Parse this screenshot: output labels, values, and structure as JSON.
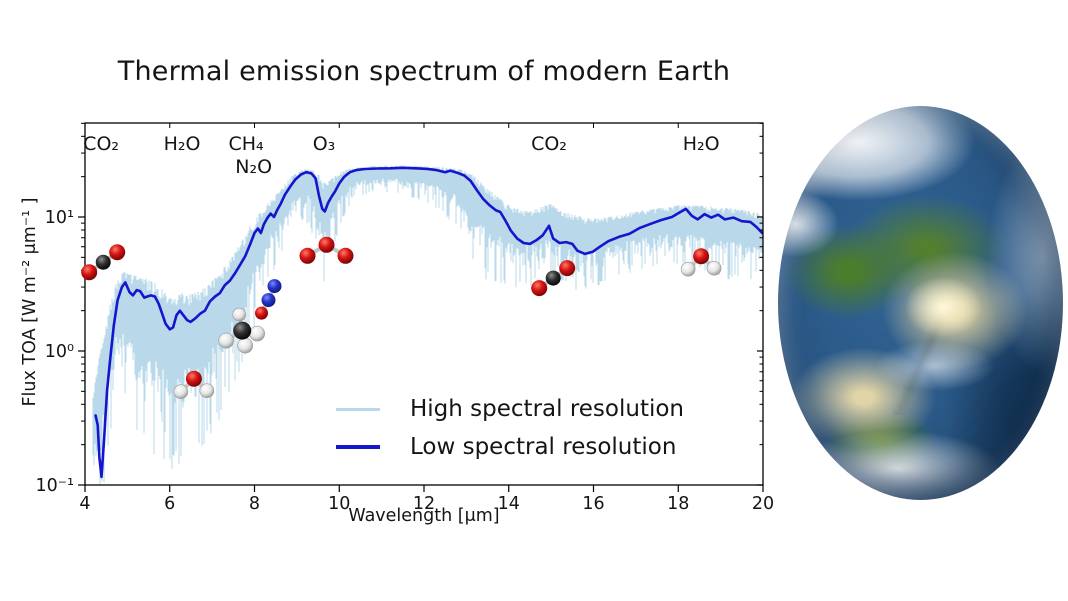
{
  "colors": {
    "background": "#ffffff",
    "high_res_line": "#b9d9ea",
    "low_res_line": "#1515cd",
    "text": "#151515"
  },
  "chart_data": {
    "type": "line",
    "title": "Thermal emission spectrum of modern Earth",
    "xlabel": "Wavelength [μm]",
    "ylabel": "Flux TOA [W m⁻² μm⁻¹ ]",
    "x_range": [
      4,
      20
    ],
    "y_scale": "log",
    "y_range": [
      0.1,
      50
    ],
    "x_ticks": [
      4,
      6,
      8,
      10,
      12,
      14,
      16,
      18,
      20
    ],
    "x_tick_labels": [
      "4",
      "6",
      "8",
      "10",
      "12",
      "14",
      "16",
      "18",
      "20"
    ],
    "y_tick_values": [
      10,
      1,
      0.1
    ],
    "y_tick_labels": [
      "10¹",
      "10⁰",
      "10⁻¹"
    ],
    "grid": false,
    "legend_position": "lower center inside",
    "legend": [
      {
        "label": "High spectral resolution",
        "color": "#b9d9ea"
      },
      {
        "label": "Low spectral resolution",
        "color": "#1515cd"
      }
    ],
    "annotations": [
      {
        "label": "CO₂",
        "label_x": 4.38,
        "row": 1,
        "molecule": "co2",
        "icon_x": 4.43,
        "icon_y": 4.6
      },
      {
        "label": "H₂O",
        "label_x": 6.29,
        "row": 1,
        "molecule": "h2o",
        "icon_x": 6.57,
        "icon_y": 0.56
      },
      {
        "label": "CH₄",
        "label_x": 7.8,
        "row": 1,
        "molecule": "ch4",
        "icon_x": 7.71,
        "icon_y": 1.42
      },
      {
        "label": "N₂O",
        "label_x": 7.98,
        "row": 2,
        "molecule": "n2o",
        "icon_x": 8.33,
        "icon_y": 2.4
      },
      {
        "label": "O₃",
        "label_x": 9.64,
        "row": 1,
        "molecule": "o3",
        "icon_x": 9.7,
        "icon_y": 5.5
      },
      {
        "label": "CO₂",
        "label_x": 14.95,
        "row": 1,
        "molecule": "co2",
        "icon_x": 15.05,
        "icon_y": 3.5
      },
      {
        "label": "H₂O",
        "label_x": 18.54,
        "row": 1,
        "molecule": "h2o",
        "icon_x": 18.54,
        "icon_y": 4.6
      }
    ],
    "series": [
      {
        "name": "Low spectral resolution",
        "color": "#1515cd",
        "points": [
          [
            4.25,
            0.33
          ],
          [
            4.3,
            0.28
          ],
          [
            4.34,
            0.16
          ],
          [
            4.39,
            0.115
          ],
          [
            4.45,
            0.22
          ],
          [
            4.52,
            0.5
          ],
          [
            4.6,
            0.9
          ],
          [
            4.68,
            1.55
          ],
          [
            4.77,
            2.4
          ],
          [
            4.87,
            3.0
          ],
          [
            4.95,
            3.25
          ],
          [
            5.05,
            2.75
          ],
          [
            5.13,
            2.6
          ],
          [
            5.22,
            2.85
          ],
          [
            5.3,
            2.8
          ],
          [
            5.4,
            2.5
          ],
          [
            5.47,
            2.55
          ],
          [
            5.56,
            2.6
          ],
          [
            5.65,
            2.55
          ],
          [
            5.74,
            2.25
          ],
          [
            5.82,
            1.9
          ],
          [
            5.9,
            1.6
          ],
          [
            6.0,
            1.45
          ],
          [
            6.08,
            1.5
          ],
          [
            6.16,
            1.85
          ],
          [
            6.24,
            2.0
          ],
          [
            6.32,
            1.85
          ],
          [
            6.41,
            1.7
          ],
          [
            6.49,
            1.65
          ],
          [
            6.6,
            1.75
          ],
          [
            6.72,
            1.9
          ],
          [
            6.83,
            2.0
          ],
          [
            6.95,
            2.35
          ],
          [
            7.07,
            2.55
          ],
          [
            7.18,
            2.7
          ],
          [
            7.3,
            3.1
          ],
          [
            7.42,
            3.35
          ],
          [
            7.54,
            3.8
          ],
          [
            7.66,
            4.4
          ],
          [
            7.78,
            5.1
          ],
          [
            7.9,
            6.3
          ],
          [
            8.0,
            7.6
          ],
          [
            8.08,
            8.2
          ],
          [
            8.15,
            7.6
          ],
          [
            8.22,
            8.8
          ],
          [
            8.3,
            9.8
          ],
          [
            8.38,
            10.6
          ],
          [
            8.46,
            10.0
          ],
          [
            8.53,
            11.2
          ],
          [
            8.62,
            12.6
          ],
          [
            8.72,
            14.7
          ],
          [
            8.84,
            16.8
          ],
          [
            8.96,
            19.0
          ],
          [
            9.1,
            20.8
          ],
          [
            9.22,
            21.6
          ],
          [
            9.34,
            21.2
          ],
          [
            9.44,
            19.5
          ],
          [
            9.52,
            14.5
          ],
          [
            9.6,
            11.5
          ],
          [
            9.66,
            11.0
          ],
          [
            9.74,
            12.8
          ],
          [
            9.82,
            14.2
          ],
          [
            9.9,
            15.5
          ],
          [
            10.0,
            17.8
          ],
          [
            10.12,
            20.0
          ],
          [
            10.25,
            21.6
          ],
          [
            10.4,
            22.4
          ],
          [
            10.6,
            22.8
          ],
          [
            10.9,
            23.0
          ],
          [
            11.2,
            23.1
          ],
          [
            11.5,
            23.3
          ],
          [
            11.8,
            23.1
          ],
          [
            12.05,
            22.9
          ],
          [
            12.3,
            22.4
          ],
          [
            12.5,
            21.6
          ],
          [
            12.62,
            22.2
          ],
          [
            12.78,
            21.4
          ],
          [
            12.95,
            20.4
          ],
          [
            13.1,
            18.6
          ],
          [
            13.25,
            15.8
          ],
          [
            13.4,
            13.6
          ],
          [
            13.55,
            12.2
          ],
          [
            13.7,
            11.2
          ],
          [
            13.8,
            10.9
          ],
          [
            13.92,
            9.4
          ],
          [
            14.05,
            7.9
          ],
          [
            14.2,
            6.9
          ],
          [
            14.35,
            6.4
          ],
          [
            14.5,
            6.3
          ],
          [
            14.65,
            6.7
          ],
          [
            14.8,
            7.3
          ],
          [
            14.95,
            8.6
          ],
          [
            15.05,
            6.9
          ],
          [
            15.2,
            6.4
          ],
          [
            15.35,
            6.5
          ],
          [
            15.5,
            6.3
          ],
          [
            15.62,
            5.6
          ],
          [
            15.8,
            5.3
          ],
          [
            15.98,
            5.5
          ],
          [
            16.15,
            6.0
          ],
          [
            16.35,
            6.6
          ],
          [
            16.6,
            7.1
          ],
          [
            16.85,
            7.5
          ],
          [
            17.1,
            8.3
          ],
          [
            17.35,
            8.9
          ],
          [
            17.6,
            9.5
          ],
          [
            17.85,
            10.0
          ],
          [
            18.05,
            10.9
          ],
          [
            18.18,
            11.5
          ],
          [
            18.32,
            10.2
          ],
          [
            18.46,
            9.6
          ],
          [
            18.62,
            10.5
          ],
          [
            18.78,
            9.9
          ],
          [
            18.94,
            10.4
          ],
          [
            19.1,
            9.6
          ],
          [
            19.3,
            9.9
          ],
          [
            19.5,
            9.3
          ],
          [
            19.7,
            9.2
          ],
          [
            19.85,
            8.4
          ],
          [
            19.98,
            7.6
          ]
        ]
      }
    ],
    "band": {
      "name": "High spectral resolution",
      "color": "#b9d9ea",
      "points_lambda_min_max": [
        [
          4.18,
          0.08,
          0.45
        ],
        [
          4.3,
          0.08,
          0.8
        ],
        [
          4.45,
          0.09,
          1.3
        ],
        [
          4.6,
          0.25,
          2.3
        ],
        [
          4.75,
          0.45,
          3.3
        ],
        [
          4.9,
          0.45,
          3.9
        ],
        [
          5.1,
          0.3,
          3.7
        ],
        [
          5.3,
          0.22,
          3.6
        ],
        [
          5.5,
          0.18,
          3.4
        ],
        [
          5.7,
          0.16,
          3.2
        ],
        [
          5.9,
          0.14,
          2.7
        ],
        [
          6.1,
          0.13,
          2.4
        ],
        [
          6.3,
          0.15,
          2.8
        ],
        [
          6.5,
          0.16,
          2.7
        ],
        [
          6.7,
          0.18,
          2.8
        ],
        [
          6.9,
          0.22,
          3.1
        ],
        [
          7.1,
          0.28,
          3.6
        ],
        [
          7.3,
          0.33,
          4.3
        ],
        [
          7.5,
          0.45,
          5.2
        ],
        [
          7.7,
          0.7,
          6.6
        ],
        [
          7.9,
          1.1,
          8.6
        ],
        [
          8.1,
          2.0,
          10.5
        ],
        [
          8.3,
          3.2,
          12.5
        ],
        [
          8.5,
          4.2,
          14.5
        ],
        [
          8.7,
          5.5,
          17.5
        ],
        [
          8.9,
          7.5,
          20.5
        ],
        [
          9.1,
          9.5,
          22.5
        ],
        [
          9.3,
          8.5,
          23.0
        ],
        [
          9.5,
          4.0,
          21.5
        ],
        [
          9.65,
          3.2,
          18.0
        ],
        [
          9.8,
          5.0,
          19.0
        ],
        [
          10.0,
          8.0,
          21.5
        ],
        [
          10.2,
          11.0,
          22.8
        ],
        [
          10.45,
          14.0,
          23.5
        ],
        [
          10.8,
          15.0,
          24.0
        ],
        [
          11.2,
          15.0,
          24.2
        ],
        [
          11.6,
          14.0,
          24.3
        ],
        [
          12.0,
          13.0,
          24.0
        ],
        [
          12.4,
          11.0,
          23.6
        ],
        [
          12.75,
          8.5,
          23.0
        ],
        [
          13.0,
          5.5,
          22.0
        ],
        [
          13.2,
          4.2,
          20.0
        ],
        [
          13.45,
          3.4,
          17.0
        ],
        [
          13.7,
          3.3,
          14.5
        ],
        [
          13.95,
          3.1,
          12.5
        ],
        [
          14.2,
          2.9,
          11.5
        ],
        [
          14.5,
          3.0,
          11.0
        ],
        [
          14.8,
          3.3,
          12.0
        ],
        [
          15.0,
          3.3,
          12.5
        ],
        [
          15.25,
          3.0,
          11.0
        ],
        [
          15.5,
          2.9,
          10.5
        ],
        [
          15.8,
          2.7,
          9.8
        ],
        [
          16.1,
          3.0,
          9.8
        ],
        [
          16.5,
          3.4,
          10.2
        ],
        [
          17.0,
          3.9,
          11.0
        ],
        [
          17.5,
          4.3,
          11.6
        ],
        [
          18.0,
          4.4,
          12.2
        ],
        [
          18.4,
          3.9,
          12.2
        ],
        [
          18.8,
          3.7,
          12.0
        ],
        [
          19.2,
          3.4,
          11.6
        ],
        [
          19.6,
          3.1,
          11.2
        ],
        [
          19.98,
          2.9,
          10.6
        ]
      ]
    }
  }
}
